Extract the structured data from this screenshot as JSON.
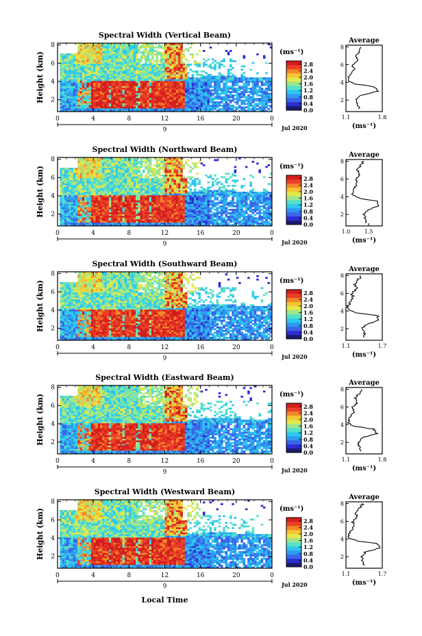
{
  "figure": {
    "xlabel": "Local Time",
    "date_label": "Jul 2020",
    "day_label": "9",
    "unit_label": "(ms⁻¹)",
    "avg_title": "Average",
    "ylabel": "Height (km)"
  },
  "colormap": [
    "#1a1a6e",
    "#2d2dd2",
    "#3a64e8",
    "#2f9bef",
    "#2ec7f0",
    "#56e0c8",
    "#9ee68c",
    "#e3e84a",
    "#f5c534",
    "#f3872a",
    "#ea4028",
    "#d21e1e"
  ],
  "chart_data": [
    {
      "type": "heatmap",
      "title": "Spectral Width (Vertical Beam)",
      "x_ticks": [
        "0",
        "4",
        "8",
        "12",
        "16",
        "20",
        "0"
      ],
      "xlim": [
        0,
        24
      ],
      "y_ticks": [
        "2",
        "4",
        "6",
        "8"
      ],
      "ylim": [
        0.7,
        8.2
      ],
      "colorbar_ticks": [
        "0.0",
        "0.4",
        "0.8",
        "1.2",
        "1.6",
        "2.0",
        "2.4",
        "2.8"
      ],
      "colorbar_range": [
        0,
        3.0
      ],
      "avg_profile": {
        "xlim": [
          1.1,
          1.8
        ],
        "x_ticks": [
          "1.1",
          "1.8"
        ],
        "y_ticks": [
          "2",
          "4",
          "6",
          "8"
        ],
        "heights": [
          1.0,
          1.5,
          2.0,
          2.5,
          3.0,
          3.5,
          3.8,
          4.2,
          4.6,
          5.0,
          5.5,
          6.0,
          6.5,
          7.0,
          7.5,
          8.0
        ],
        "values": [
          1.35,
          1.33,
          1.3,
          1.38,
          1.72,
          1.65,
          1.3,
          1.14,
          1.15,
          1.18,
          1.26,
          1.22,
          1.33,
          1.27,
          1.36,
          1.4
        ]
      }
    },
    {
      "type": "heatmap",
      "title": "Spectral Width (Northward Beam)",
      "x_ticks": [
        "0",
        "4",
        "8",
        "12",
        "16",
        "20",
        "0"
      ],
      "xlim": [
        0,
        24
      ],
      "y_ticks": [
        "2",
        "4",
        "6",
        "8"
      ],
      "ylim": [
        0.7,
        8.2
      ],
      "colorbar_ticks": [
        "0.0",
        "0.4",
        "0.8",
        "1.2",
        "1.6",
        "2.0",
        "2.4",
        "2.8"
      ],
      "colorbar_range": [
        0,
        3.0
      ],
      "avg_profile": {
        "xlim": [
          1.0,
          1.8
        ],
        "x_ticks": [
          "1.0",
          "1.5"
        ],
        "y_ticks": [
          "2",
          "4",
          "6",
          "8"
        ],
        "heights": [
          1.0,
          1.5,
          2.0,
          2.5,
          3.0,
          3.5,
          3.8,
          4.2,
          4.6,
          5.0,
          5.5,
          6.0,
          6.5,
          7.0,
          7.5,
          8.0
        ],
        "values": [
          1.45,
          1.43,
          1.4,
          1.48,
          1.72,
          1.7,
          1.3,
          1.14,
          1.15,
          1.2,
          1.24,
          1.22,
          1.3,
          1.25,
          1.32,
          1.38
        ]
      }
    },
    {
      "type": "heatmap",
      "title": "Spectral Width (Southward Beam)",
      "x_ticks": [
        "0",
        "4",
        "8",
        "12",
        "16",
        "20",
        "0"
      ],
      "xlim": [
        0,
        24
      ],
      "y_ticks": [
        "2",
        "4",
        "6",
        "8"
      ],
      "ylim": [
        0.7,
        8.2
      ],
      "colorbar_ticks": [
        "0.0",
        "0.4",
        "0.8",
        "1.2",
        "1.6",
        "2.0",
        "2.4",
        "2.8"
      ],
      "colorbar_range": [
        0,
        3.0
      ],
      "avg_profile": {
        "xlim": [
          1.1,
          1.7
        ],
        "x_ticks": [
          "1.1",
          "1.7"
        ],
        "y_ticks": [
          "2",
          "4",
          "6",
          "8"
        ],
        "heights": [
          1.0,
          1.5,
          2.0,
          2.5,
          3.0,
          3.5,
          3.8,
          4.2,
          4.6,
          5.0,
          5.5,
          6.0,
          6.5,
          7.0,
          7.5,
          8.0
        ],
        "values": [
          1.42,
          1.4,
          1.36,
          1.44,
          1.66,
          1.62,
          1.26,
          1.13,
          1.14,
          1.18,
          1.22,
          1.2,
          1.28,
          1.24,
          1.3,
          1.35
        ]
      }
    },
    {
      "type": "heatmap",
      "title": "Spectral Width (Eastward Beam)",
      "x_ticks": [
        "0",
        "4",
        "8",
        "12",
        "16",
        "20",
        "0"
      ],
      "xlim": [
        0,
        24
      ],
      "y_ticks": [
        "2",
        "4",
        "6",
        "8"
      ],
      "ylim": [
        0.7,
        8.2
      ],
      "colorbar_ticks": [
        "0.0",
        "0.4",
        "0.8",
        "1.2",
        "1.6",
        "2.0",
        "2.4",
        "2.8"
      ],
      "colorbar_range": [
        0,
        3.0
      ],
      "avg_profile": {
        "xlim": [
          1.1,
          1.8
        ],
        "x_ticks": [
          "1.1",
          "1.8"
        ],
        "y_ticks": [
          "2",
          "4",
          "6",
          "8"
        ],
        "heights": [
          1.0,
          1.5,
          2.0,
          2.5,
          3.0,
          3.5,
          3.8,
          4.2,
          4.6,
          5.0,
          5.5,
          6.0,
          6.5,
          7.0,
          7.5,
          8.0
        ],
        "values": [
          1.38,
          1.36,
          1.33,
          1.4,
          1.7,
          1.64,
          1.28,
          1.14,
          1.16,
          1.2,
          1.26,
          1.22,
          1.32,
          1.28,
          1.35,
          1.4
        ]
      }
    },
    {
      "type": "heatmap",
      "title": "Spectral Width (Westward Beam)",
      "x_ticks": [
        "0",
        "4",
        "8",
        "12",
        "16",
        "20",
        "0"
      ],
      "xlim": [
        0,
        24
      ],
      "y_ticks": [
        "2",
        "4",
        "6",
        "8"
      ],
      "ylim": [
        0.7,
        8.2
      ],
      "colorbar_ticks": [
        "0.0",
        "0.4",
        "0.8",
        "1.2",
        "1.6",
        "2.0",
        "2.4",
        "2.8"
      ],
      "colorbar_range": [
        0,
        3.0
      ],
      "avg_profile": {
        "xlim": [
          1.1,
          1.7
        ],
        "x_ticks": [
          "1.1",
          "1.7"
        ],
        "y_ticks": [
          "2",
          "4",
          "6",
          "8"
        ],
        "heights": [
          1.0,
          1.5,
          2.0,
          2.5,
          3.0,
          3.5,
          3.8,
          4.2,
          4.6,
          5.0,
          5.5,
          6.0,
          6.5,
          7.0,
          7.5,
          8.0
        ],
        "values": [
          1.4,
          1.38,
          1.35,
          1.42,
          1.66,
          1.6,
          1.27,
          1.13,
          1.15,
          1.19,
          1.24,
          1.21,
          1.3,
          1.26,
          1.33,
          1.38
        ]
      }
    }
  ]
}
